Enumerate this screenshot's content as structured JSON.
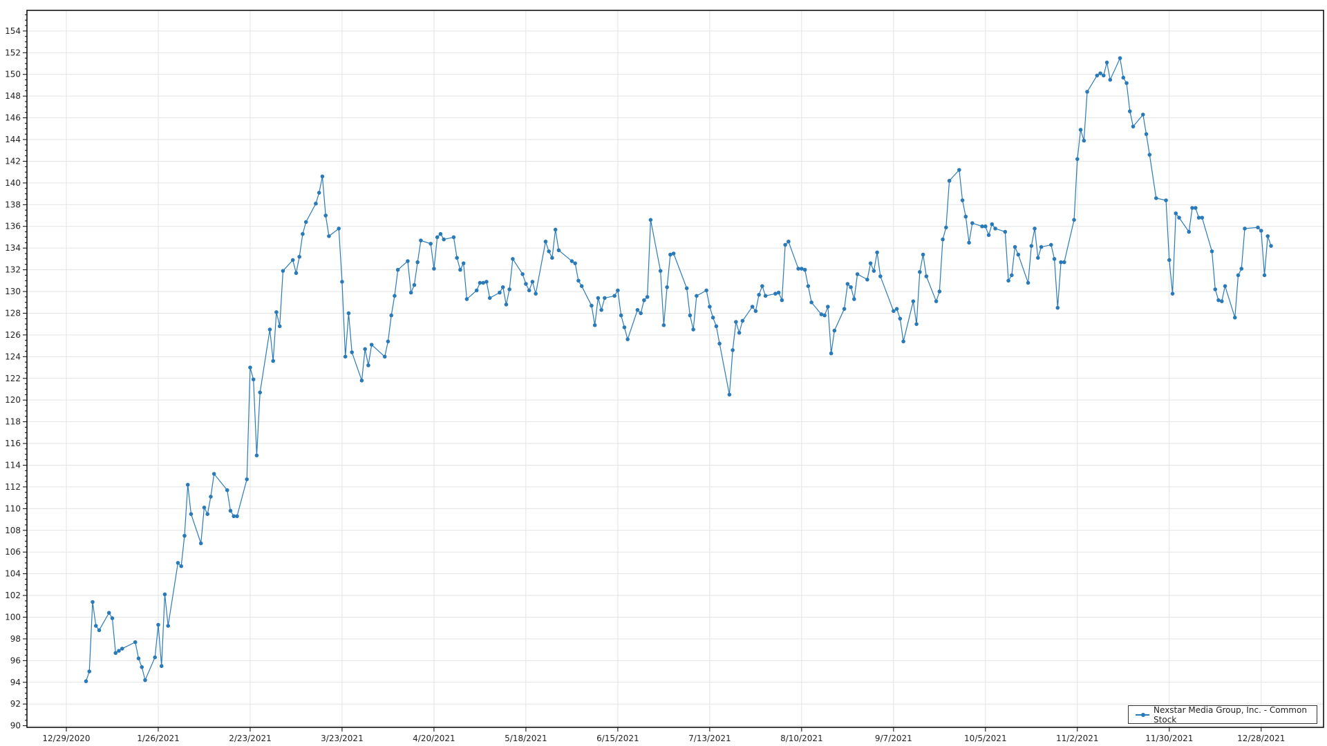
{
  "chart_data": {
    "type": "line",
    "title": "",
    "xlabel": "",
    "ylabel": "",
    "xlim": [
      "2020-12-17",
      "2022-01-16"
    ],
    "ylim": [
      89.85,
      155.9
    ],
    "yticks": [
      90,
      92,
      94,
      96,
      98,
      100,
      102,
      104,
      106,
      108,
      110,
      112,
      114,
      116,
      118,
      120,
      122,
      124,
      126,
      128,
      130,
      132,
      134,
      136,
      138,
      140,
      142,
      144,
      146,
      148,
      150,
      152,
      154
    ],
    "xticks": [
      "2020-12-29",
      "2021-01-26",
      "2021-02-23",
      "2021-03-23",
      "2021-04-20",
      "2021-05-18",
      "2021-06-15",
      "2021-07-13",
      "2021-08-10",
      "2021-09-07",
      "2021-10-05",
      "2021-11-02",
      "2021-11-30",
      "2021-12-28"
    ],
    "xtick_labels": [
      "12/29/2020",
      "1/26/2021",
      "2/23/2021",
      "3/23/2021",
      "4/20/2021",
      "5/18/2021",
      "6/15/2021",
      "7/13/2021",
      "8/10/2021",
      "9/7/2021",
      "10/5/2021",
      "11/2/2021",
      "11/30/2021",
      "12/28/2021"
    ],
    "grid": true,
    "legend_position": "bottom-right",
    "color": "#2a7ab8",
    "series": [
      {
        "name": "Nexstar Media Group, Inc. - Common Stock",
        "points": [
          [
            "2021-01-04",
            94.1
          ],
          [
            "2021-01-05",
            95.0
          ],
          [
            "2021-01-06",
            101.4
          ],
          [
            "2021-01-07",
            99.2
          ],
          [
            "2021-01-08",
            98.8
          ],
          [
            "2021-01-11",
            100.4
          ],
          [
            "2021-01-12",
            99.9
          ],
          [
            "2021-01-13",
            96.7
          ],
          [
            "2021-01-14",
            96.9
          ],
          [
            "2021-01-15",
            97.1
          ],
          [
            "2021-01-19",
            97.7
          ],
          [
            "2021-01-20",
            96.2
          ],
          [
            "2021-01-21",
            95.4
          ],
          [
            "2021-01-22",
            94.2
          ],
          [
            "2021-01-25",
            96.3
          ],
          [
            "2021-01-26",
            99.3
          ],
          [
            "2021-01-27",
            95.5
          ],
          [
            "2021-01-28",
            102.1
          ],
          [
            "2021-01-29",
            99.2
          ],
          [
            "2021-02-01",
            105.0
          ],
          [
            "2021-02-02",
            104.7
          ],
          [
            "2021-02-03",
            107.5
          ],
          [
            "2021-02-04",
            112.2
          ],
          [
            "2021-02-05",
            109.5
          ],
          [
            "2021-02-08",
            106.8
          ],
          [
            "2021-02-09",
            110.1
          ],
          [
            "2021-02-10",
            109.5
          ],
          [
            "2021-02-11",
            111.1
          ],
          [
            "2021-02-12",
            113.2
          ],
          [
            "2021-02-16",
            111.7
          ],
          [
            "2021-02-17",
            109.8
          ],
          [
            "2021-02-18",
            109.3
          ],
          [
            "2021-02-19",
            109.3
          ],
          [
            "2021-02-22",
            112.7
          ],
          [
            "2021-02-23",
            123.0
          ],
          [
            "2021-02-24",
            121.9
          ],
          [
            "2021-02-25",
            114.9
          ],
          [
            "2021-02-26",
            120.7
          ],
          [
            "2021-03-01",
            126.5
          ],
          [
            "2021-03-02",
            123.6
          ],
          [
            "2021-03-03",
            128.1
          ],
          [
            "2021-03-04",
            126.8
          ],
          [
            "2021-03-05",
            131.9
          ],
          [
            "2021-03-08",
            132.9
          ],
          [
            "2021-03-09",
            131.7
          ],
          [
            "2021-03-10",
            133.2
          ],
          [
            "2021-03-11",
            135.3
          ],
          [
            "2021-03-12",
            136.4
          ],
          [
            "2021-03-15",
            138.1
          ],
          [
            "2021-03-16",
            139.1
          ],
          [
            "2021-03-17",
            140.6
          ],
          [
            "2021-03-18",
            137.0
          ],
          [
            "2021-03-19",
            135.1
          ],
          [
            "2021-03-22",
            135.8
          ],
          [
            "2021-03-23",
            130.9
          ],
          [
            "2021-03-24",
            124.0
          ],
          [
            "2021-03-25",
            128.0
          ],
          [
            "2021-03-26",
            124.4
          ],
          [
            "2021-03-29",
            121.8
          ],
          [
            "2021-03-30",
            124.7
          ],
          [
            "2021-03-31",
            123.2
          ],
          [
            "2021-04-01",
            125.1
          ],
          [
            "2021-04-05",
            124.0
          ],
          [
            "2021-04-06",
            125.4
          ],
          [
            "2021-04-07",
            127.8
          ],
          [
            "2021-04-08",
            129.6
          ],
          [
            "2021-04-09",
            132.0
          ],
          [
            "2021-04-12",
            132.8
          ],
          [
            "2021-04-13",
            129.9
          ],
          [
            "2021-04-14",
            130.6
          ],
          [
            "2021-04-15",
            132.7
          ],
          [
            "2021-04-16",
            134.7
          ],
          [
            "2021-04-19",
            134.4
          ],
          [
            "2021-04-20",
            132.1
          ],
          [
            "2021-04-21",
            135.0
          ],
          [
            "2021-04-22",
            135.3
          ],
          [
            "2021-04-23",
            134.8
          ],
          [
            "2021-04-26",
            135.0
          ],
          [
            "2021-04-27",
            133.1
          ],
          [
            "2021-04-28",
            132.0
          ],
          [
            "2021-04-29",
            132.6
          ],
          [
            "2021-04-30",
            129.3
          ],
          [
            "2021-05-03",
            130.1
          ],
          [
            "2021-05-04",
            130.8
          ],
          [
            "2021-05-05",
            130.8
          ],
          [
            "2021-05-06",
            130.9
          ],
          [
            "2021-05-07",
            129.4
          ],
          [
            "2021-05-10",
            129.9
          ],
          [
            "2021-05-11",
            130.4
          ],
          [
            "2021-05-12",
            128.8
          ],
          [
            "2021-05-13",
            130.2
          ],
          [
            "2021-05-14",
            133.0
          ],
          [
            "2021-05-17",
            131.6
          ],
          [
            "2021-05-18",
            130.7
          ],
          [
            "2021-05-19",
            130.1
          ],
          [
            "2021-05-20",
            130.9
          ],
          [
            "2021-05-21",
            129.8
          ],
          [
            "2021-05-24",
            134.6
          ],
          [
            "2021-05-25",
            133.7
          ],
          [
            "2021-05-26",
            133.1
          ],
          [
            "2021-05-27",
            135.7
          ],
          [
            "2021-05-28",
            133.8
          ],
          [
            "2021-06-01",
            132.8
          ],
          [
            "2021-06-02",
            132.6
          ],
          [
            "2021-06-03",
            131.0
          ],
          [
            "2021-06-04",
            130.5
          ],
          [
            "2021-06-07",
            128.7
          ],
          [
            "2021-06-08",
            126.9
          ],
          [
            "2021-06-09",
            129.4
          ],
          [
            "2021-06-10",
            128.3
          ],
          [
            "2021-06-11",
            129.4
          ],
          [
            "2021-06-14",
            129.6
          ],
          [
            "2021-06-15",
            130.1
          ],
          [
            "2021-06-16",
            127.8
          ],
          [
            "2021-06-17",
            126.7
          ],
          [
            "2021-06-18",
            125.6
          ],
          [
            "2021-06-21",
            128.3
          ],
          [
            "2021-06-22",
            128.0
          ],
          [
            "2021-06-23",
            129.2
          ],
          [
            "2021-06-24",
            129.5
          ],
          [
            "2021-06-25",
            136.6
          ],
          [
            "2021-06-28",
            131.9
          ],
          [
            "2021-06-29",
            126.9
          ],
          [
            "2021-06-30",
            130.4
          ],
          [
            "2021-07-01",
            133.4
          ],
          [
            "2021-07-02",
            133.5
          ],
          [
            "2021-07-06",
            130.3
          ],
          [
            "2021-07-07",
            127.8
          ],
          [
            "2021-07-08",
            126.5
          ],
          [
            "2021-07-09",
            129.6
          ],
          [
            "2021-07-12",
            130.1
          ],
          [
            "2021-07-13",
            128.6
          ],
          [
            "2021-07-14",
            127.6
          ],
          [
            "2021-07-15",
            126.8
          ],
          [
            "2021-07-16",
            125.2
          ],
          [
            "2021-07-19",
            120.5
          ],
          [
            "2021-07-20",
            124.6
          ],
          [
            "2021-07-21",
            127.2
          ],
          [
            "2021-07-22",
            126.2
          ],
          [
            "2021-07-23",
            127.3
          ],
          [
            "2021-07-26",
            128.6
          ],
          [
            "2021-07-27",
            128.2
          ],
          [
            "2021-07-28",
            129.7
          ],
          [
            "2021-07-29",
            130.5
          ],
          [
            "2021-07-30",
            129.6
          ],
          [
            "2021-08-02",
            129.8
          ],
          [
            "2021-08-03",
            129.9
          ],
          [
            "2021-08-04",
            129.2
          ],
          [
            "2021-08-05",
            134.3
          ],
          [
            "2021-08-06",
            134.6
          ],
          [
            "2021-08-09",
            132.1
          ],
          [
            "2021-08-10",
            132.1
          ],
          [
            "2021-08-11",
            132.0
          ],
          [
            "2021-08-12",
            130.5
          ],
          [
            "2021-08-13",
            129.0
          ],
          [
            "2021-08-16",
            127.9
          ],
          [
            "2021-08-17",
            127.8
          ],
          [
            "2021-08-18",
            128.6
          ],
          [
            "2021-08-19",
            124.3
          ],
          [
            "2021-08-20",
            126.4
          ],
          [
            "2021-08-23",
            128.4
          ],
          [
            "2021-08-24",
            130.7
          ],
          [
            "2021-08-25",
            130.4
          ],
          [
            "2021-08-26",
            129.3
          ],
          [
            "2021-08-27",
            131.6
          ],
          [
            "2021-08-30",
            131.1
          ],
          [
            "2021-08-31",
            132.6
          ],
          [
            "2021-09-01",
            131.9
          ],
          [
            "2021-09-02",
            133.6
          ],
          [
            "2021-09-03",
            131.4
          ],
          [
            "2021-09-07",
            128.2
          ],
          [
            "2021-09-08",
            128.4
          ],
          [
            "2021-09-09",
            127.5
          ],
          [
            "2021-09-10",
            125.4
          ],
          [
            "2021-09-13",
            129.1
          ],
          [
            "2021-09-14",
            127.0
          ],
          [
            "2021-09-15",
            131.8
          ],
          [
            "2021-09-16",
            133.4
          ],
          [
            "2021-09-17",
            131.4
          ],
          [
            "2021-09-20",
            129.1
          ],
          [
            "2021-09-21",
            130.0
          ],
          [
            "2021-09-22",
            134.8
          ],
          [
            "2021-09-23",
            135.9
          ],
          [
            "2021-09-24",
            140.2
          ],
          [
            "2021-09-27",
            141.2
          ],
          [
            "2021-09-28",
            138.4
          ],
          [
            "2021-09-29",
            136.9
          ],
          [
            "2021-09-30",
            134.5
          ],
          [
            "2021-10-01",
            136.3
          ],
          [
            "2021-10-04",
            136.0
          ],
          [
            "2021-10-05",
            136.0
          ],
          [
            "2021-10-06",
            135.2
          ],
          [
            "2021-10-07",
            136.2
          ],
          [
            "2021-10-08",
            135.8
          ],
          [
            "2021-10-11",
            135.5
          ],
          [
            "2021-10-12",
            131.0
          ],
          [
            "2021-10-13",
            131.5
          ],
          [
            "2021-10-14",
            134.1
          ],
          [
            "2021-10-15",
            133.4
          ],
          [
            "2021-10-18",
            130.8
          ],
          [
            "2021-10-19",
            134.2
          ],
          [
            "2021-10-20",
            135.8
          ],
          [
            "2021-10-21",
            133.1
          ],
          [
            "2021-10-22",
            134.1
          ],
          [
            "2021-10-25",
            134.3
          ],
          [
            "2021-10-26",
            133.0
          ],
          [
            "2021-10-27",
            128.5
          ],
          [
            "2021-10-28",
            132.7
          ],
          [
            "2021-10-29",
            132.7
          ],
          [
            "2021-11-01",
            136.6
          ],
          [
            "2021-11-02",
            142.2
          ],
          [
            "2021-11-03",
            144.9
          ],
          [
            "2021-11-04",
            143.9
          ],
          [
            "2021-11-05",
            148.4
          ],
          [
            "2021-11-08",
            149.9
          ],
          [
            "2021-11-09",
            150.1
          ],
          [
            "2021-11-10",
            149.9
          ],
          [
            "2021-11-11",
            151.1
          ],
          [
            "2021-11-12",
            149.5
          ],
          [
            "2021-11-15",
            151.5
          ],
          [
            "2021-11-16",
            149.7
          ],
          [
            "2021-11-17",
            149.2
          ],
          [
            "2021-11-18",
            146.6
          ],
          [
            "2021-11-19",
            145.2
          ],
          [
            "2021-11-22",
            146.3
          ],
          [
            "2021-11-23",
            144.5
          ],
          [
            "2021-11-24",
            142.6
          ],
          [
            "2021-11-26",
            138.6
          ],
          [
            "2021-11-29",
            138.4
          ],
          [
            "2021-11-30",
            132.9
          ],
          [
            "2021-12-01",
            129.8
          ],
          [
            "2021-12-02",
            137.2
          ],
          [
            "2021-12-03",
            136.8
          ],
          [
            "2021-12-06",
            135.5
          ],
          [
            "2021-12-07",
            137.7
          ],
          [
            "2021-12-08",
            137.7
          ],
          [
            "2021-12-09",
            136.8
          ],
          [
            "2021-12-10",
            136.8
          ],
          [
            "2021-12-13",
            133.7
          ],
          [
            "2021-12-14",
            130.2
          ],
          [
            "2021-12-15",
            129.2
          ],
          [
            "2021-12-16",
            129.1
          ],
          [
            "2021-12-17",
            130.5
          ],
          [
            "2021-12-20",
            127.6
          ],
          [
            "2021-12-21",
            131.5
          ],
          [
            "2021-12-22",
            132.1
          ],
          [
            "2021-12-23",
            135.8
          ],
          [
            "2021-12-27",
            135.9
          ],
          [
            "2021-12-28",
            135.6
          ],
          [
            "2021-12-29",
            131.5
          ],
          [
            "2021-12-30",
            135.1
          ],
          [
            "2021-12-31",
            134.2
          ]
        ]
      }
    ]
  }
}
